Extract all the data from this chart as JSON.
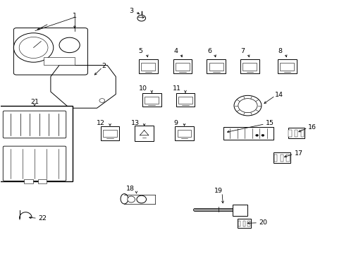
{
  "bg_color": "#ffffff",
  "line_color": "#000000",
  "text_color": "#000000",
  "figsize": [
    4.89,
    3.6
  ],
  "dpi": 100
}
